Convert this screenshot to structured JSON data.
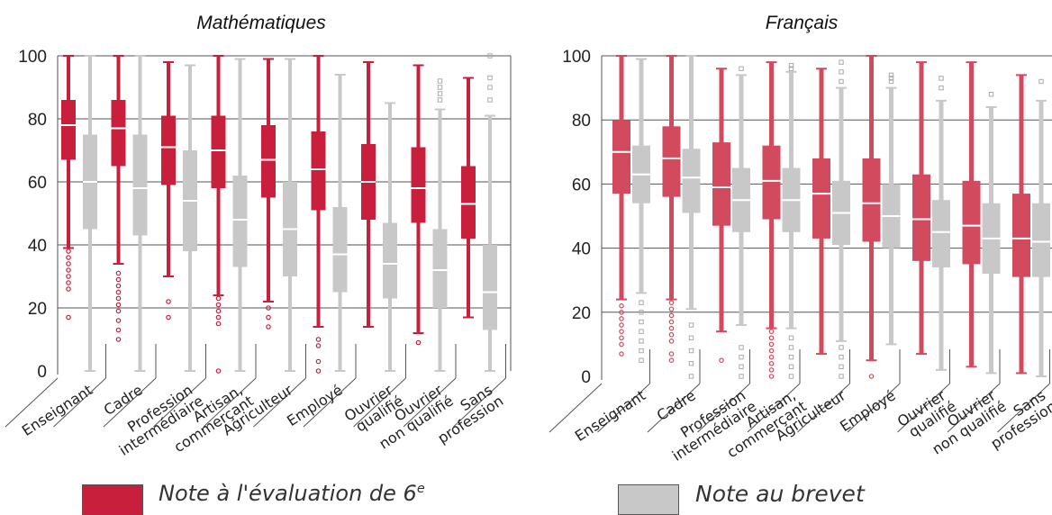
{
  "colors": {
    "red": "#c8203c",
    "red_light": "#d24a5e",
    "grey": "#c8c8c8",
    "grid": "#555555"
  },
  "legend": {
    "red_label": "Note à l'évaluation de 6",
    "red_sup": "e",
    "grey_label": "Note au brevet"
  },
  "chart_data": [
    {
      "type": "box",
      "title": "Mathématiques",
      "ylim": [
        0,
        100
      ],
      "yticks": [
        0,
        20,
        40,
        60,
        80,
        100
      ],
      "categories": [
        "Enseignant",
        "Cadre",
        "Profession intermédiaire",
        "Artisan, commerçant",
        "Agriculteur",
        "Employé",
        "Ouvrier qualifié",
        "Ouvrier non qualifié",
        "Sans profession"
      ],
      "category_lines": [
        [
          "Enseignant"
        ],
        [
          "Cadre"
        ],
        [
          "Profession",
          "intermédiaire"
        ],
        [
          "Artisan,",
          "commerçant"
        ],
        [
          "Agriculteur"
        ],
        [
          "Employé"
        ],
        [
          "Ouvrier",
          "qualifié"
        ],
        [
          "Ouvrier",
          "non qualifié"
        ],
        [
          "Sans",
          "profession"
        ]
      ],
      "series": [
        {
          "name": "Note à l'évaluation de 6e",
          "color": "red",
          "boxes": [
            {
              "min": 39,
              "q1": 67,
              "median": 78,
              "q3": 86,
              "max": 100,
              "outliers": [
                17,
                26,
                28,
                30,
                32,
                34,
                36,
                38
              ]
            },
            {
              "min": 34,
              "q1": 65,
              "median": 77,
              "q3": 86,
              "max": 100,
              "outliers": [
                10,
                13,
                16,
                19,
                21,
                23,
                25,
                27,
                29,
                31
              ]
            },
            {
              "min": 30,
              "q1": 59,
              "median": 71,
              "q3": 81,
              "max": 98,
              "outliers": [
                17,
                22
              ]
            },
            {
              "min": 24,
              "q1": 58,
              "median": 70,
              "q3": 81,
              "max": 100,
              "outliers": [
                0,
                15,
                17,
                19,
                21,
                23
              ]
            },
            {
              "min": 22,
              "q1": 55,
              "median": 67,
              "q3": 78,
              "max": 99,
              "outliers": [
                14,
                17,
                20
              ]
            },
            {
              "min": 14,
              "q1": 51,
              "median": 64,
              "q3": 76,
              "max": 100,
              "outliers": [
                0,
                3,
                8,
                10
              ]
            },
            {
              "min": 14,
              "q1": 48,
              "median": 60,
              "q3": 72,
              "max": 98,
              "outliers": []
            },
            {
              "min": 12,
              "q1": 47,
              "median": 58,
              "q3": 71,
              "max": 97,
              "outliers": [
                9
              ]
            },
            {
              "min": 17,
              "q1": 42,
              "median": 53,
              "q3": 65,
              "max": 93,
              "outliers": []
            }
          ]
        },
        {
          "name": "Note au brevet",
          "color": "grey",
          "boxes": [
            {
              "min": 0,
              "q1": 45,
              "median": 60,
              "q3": 75,
              "max": 100,
              "outliers": []
            },
            {
              "min": 0,
              "q1": 43,
              "median": 58,
              "q3": 75,
              "max": 100,
              "outliers": []
            },
            {
              "min": 0,
              "q1": 38,
              "median": 54,
              "q3": 70,
              "max": 97,
              "outliers": []
            },
            {
              "min": 0,
              "q1": 33,
              "median": 48,
              "q3": 62,
              "max": 99,
              "outliers": []
            },
            {
              "min": 0,
              "q1": 30,
              "median": 45,
              "q3": 60,
              "max": 99,
              "outliers": []
            },
            {
              "min": 0,
              "q1": 25,
              "median": 37,
              "q3": 52,
              "max": 94,
              "outliers": []
            },
            {
              "min": 0,
              "q1": 23,
              "median": 34,
              "q3": 47,
              "max": 85,
              "outliers": []
            },
            {
              "min": 0,
              "q1": 20,
              "median": 32,
              "q3": 45,
              "max": 83,
              "outliers": [
                86,
                88,
                90,
                92
              ]
            },
            {
              "min": 0,
              "q1": 13,
              "median": 25,
              "q3": 40,
              "max": 81,
              "outliers": [
                86,
                90,
                93,
                100
              ]
            }
          ]
        }
      ]
    },
    {
      "type": "box",
      "title": "Français",
      "ylim": [
        0,
        100
      ],
      "yticks": [
        0,
        20,
        40,
        60,
        80,
        100
      ],
      "categories": [
        "Enseignant",
        "Cadre",
        "Profession intermédiaire",
        "Artisan, commerçant",
        "Agriculteur",
        "Employé",
        "Ouvrier qualifié",
        "Ouvrier non qualifié",
        "Sans profession"
      ],
      "category_lines": [
        [
          "Enseignant"
        ],
        [
          "Cadre"
        ],
        [
          "Profession",
          "intermédiaire"
        ],
        [
          "Artisan,",
          "commerçant"
        ],
        [
          "Agriculteur"
        ],
        [
          "Employé"
        ],
        [
          "Ouvrier",
          "qualifié"
        ],
        [
          "Ouvrier",
          "non qualifié"
        ],
        [
          "Sans",
          "profession"
        ]
      ],
      "series": [
        {
          "name": "Note à l'évaluation de 6e",
          "color": "red",
          "boxes": [
            {
              "min": 24,
              "q1": 57,
              "median": 70,
              "q3": 80,
              "max": 100,
              "outliers": [
                7,
                10,
                12,
                14,
                16,
                18,
                20,
                22
              ]
            },
            {
              "min": 24,
              "q1": 56,
              "median": 68,
              "q3": 78,
              "max": 100,
              "outliers": [
                5,
                7,
                11,
                13,
                15,
                17,
                19,
                21,
                23
              ]
            },
            {
              "min": 14,
              "q1": 47,
              "median": 59,
              "q3": 73,
              "max": 96,
              "outliers": [
                5
              ]
            },
            {
              "min": 15,
              "q1": 49,
              "median": 61,
              "q3": 72,
              "max": 98,
              "outliers": [
                0,
                2,
                4,
                6,
                8,
                10,
                12,
                14
              ]
            },
            {
              "min": 7,
              "q1": 43,
              "median": 57,
              "q3": 68,
              "max": 96,
              "outliers": []
            },
            {
              "min": 5,
              "q1": 42,
              "median": 54,
              "q3": 68,
              "max": 100,
              "outliers": [
                0
              ]
            },
            {
              "min": 7,
              "q1": 36,
              "median": 49,
              "q3": 63,
              "max": 98,
              "outliers": []
            },
            {
              "min": 3,
              "q1": 35,
              "median": 47,
              "q3": 61,
              "max": 98,
              "outliers": []
            },
            {
              "min": 1,
              "q1": 31,
              "median": 43,
              "q3": 57,
              "max": 94,
              "outliers": []
            }
          ]
        },
        {
          "name": "Note au brevet",
          "color": "grey",
          "boxes": [
            {
              "min": 26,
              "q1": 54,
              "median": 63,
              "q3": 72,
              "max": 99,
              "outliers": [
                5,
                8,
                11,
                14,
                17,
                20,
                23
              ]
            },
            {
              "min": 21,
              "q1": 51,
              "median": 62,
              "q3": 71,
              "max": 100,
              "outliers": [
                0,
                4,
                8,
                12,
                16
              ]
            },
            {
              "min": 16,
              "q1": 45,
              "median": 55,
              "q3": 65,
              "max": 94,
              "outliers": [
                0,
                3,
                6,
                9,
                96
              ]
            },
            {
              "min": 15,
              "q1": 45,
              "median": 55,
              "q3": 65,
              "max": 95,
              "outliers": [
                0,
                3,
                6,
                9,
                12,
                96,
                97
              ]
            },
            {
              "min": 11,
              "q1": 41,
              "median": 51,
              "q3": 61,
              "max": 90,
              "outliers": [
                0,
                3,
                6,
                9,
                92,
                95,
                98
              ]
            },
            {
              "min": 10,
              "q1": 40,
              "median": 50,
              "q3": 60,
              "max": 90,
              "outliers": [
                92,
                93,
                94
              ]
            },
            {
              "min": 2,
              "q1": 34,
              "median": 45,
              "q3": 55,
              "max": 86,
              "outliers": [
                90,
                93
              ]
            },
            {
              "min": 1,
              "q1": 32,
              "median": 43,
              "q3": 54,
              "max": 84,
              "outliers": [
                88
              ]
            },
            {
              "min": 0,
              "q1": 31,
              "median": 42,
              "q3": 54,
              "max": 86,
              "outliers": [
                92
              ]
            }
          ]
        }
      ]
    }
  ]
}
